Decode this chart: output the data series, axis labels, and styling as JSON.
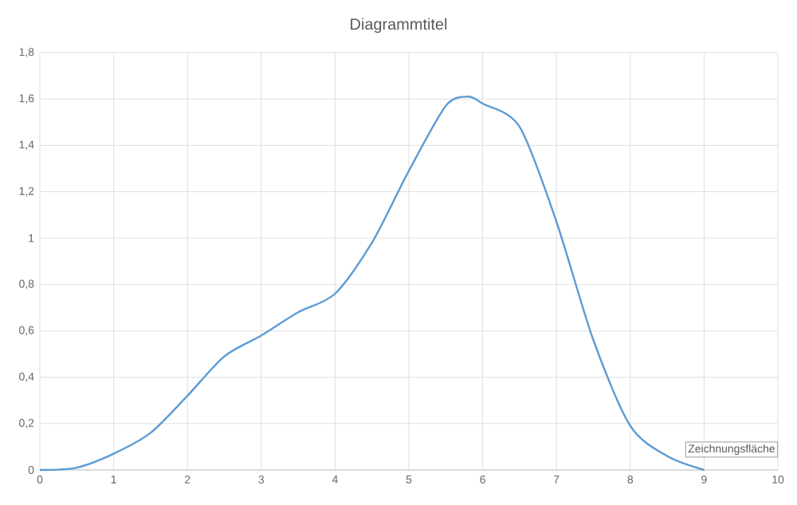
{
  "chart_data": {
    "type": "line",
    "title": "Diagrammtitel",
    "x": [
      0,
      0.5,
      1,
      1.5,
      2,
      2.5,
      3,
      3.5,
      4,
      4.5,
      5,
      5.5,
      5.8,
      6,
      6.5,
      7,
      7.5,
      8,
      8.5,
      9
    ],
    "series": [
      {
        "color": "#5b9bd5",
        "values": [
          0,
          0.01,
          0.07,
          0.16,
          0.32,
          0.49,
          0.58,
          0.68,
          0.76,
          0.98,
          1.29,
          1.57,
          1.61,
          1.58,
          1.48,
          1.07,
          0.56,
          0.19,
          0.06,
          0
        ]
      }
    ],
    "xlim": [
      0,
      10
    ],
    "xticks": [
      0,
      1,
      2,
      3,
      4,
      5,
      6,
      7,
      8,
      9,
      10
    ],
    "ylim": [
      0,
      1.8
    ],
    "yticks": [
      0,
      {
        "value": 0.2,
        "label": "0,2"
      },
      {
        "value": 0.4,
        "label": "0,4"
      },
      {
        "value": 0.6,
        "label": "0,6"
      },
      {
        "value": 0.8,
        "label": "0,8"
      },
      1,
      {
        "value": 1.2,
        "label": "1,2"
      },
      {
        "value": 1.4,
        "label": "1,4"
      },
      {
        "value": 1.6,
        "label": "1,6"
      },
      {
        "value": 1.8,
        "label": "1,8"
      }
    ],
    "grid": true,
    "marker": "none",
    "line_style": "solid",
    "annotations": [
      "Zeichnungsfläche"
    ]
  }
}
